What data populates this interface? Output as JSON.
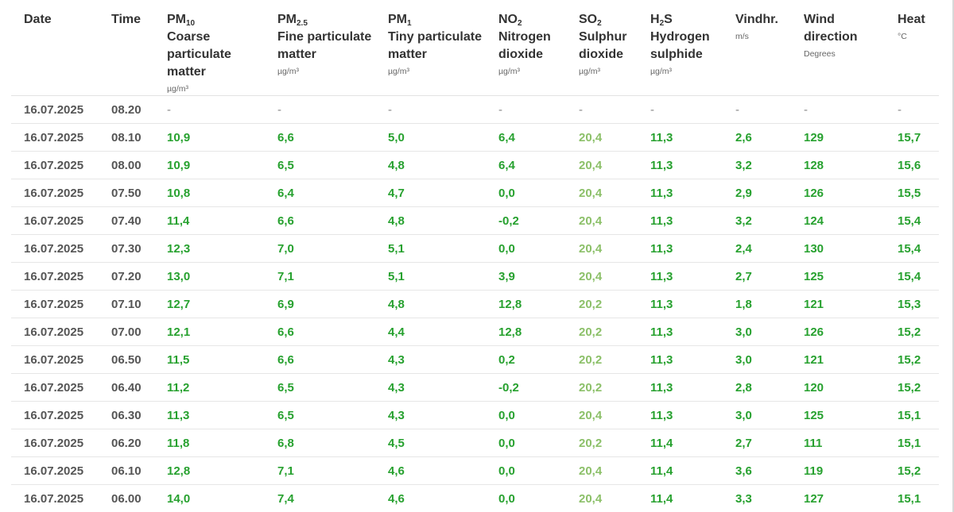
{
  "colors": {
    "green": "#27a12f",
    "light_green": "#8cc069",
    "text": "#333333",
    "dash": "#888888"
  },
  "headers": {
    "date": "Date",
    "time": "Time",
    "pm10": {
      "symbol": "PM",
      "sub": "10",
      "desc": "Coarse particulate matter",
      "unit": "µg/m³"
    },
    "pm25": {
      "symbol": "PM",
      "sub": "2.5",
      "desc": "Fine particulate matter",
      "unit": "µg/m³"
    },
    "pm1": {
      "symbol": "PM",
      "sub": "1",
      "desc": "Tiny particulate matter",
      "unit": "µg/m³"
    },
    "no2": {
      "symbol": "NO",
      "sub": "2",
      "desc": "Nitrogen dioxide",
      "unit": "µg/m³"
    },
    "so2": {
      "symbol": "SO",
      "sub": "2",
      "desc": "Sulphur dioxide",
      "unit": "µg/m³"
    },
    "h2s": {
      "symbol_a": "H",
      "sub": "2",
      "symbol_b": "S",
      "desc": "Hydrogen sulphide",
      "unit": "µg/m³"
    },
    "wind_speed": {
      "label": "Vindhr.",
      "unit": "m/s"
    },
    "wind_dir": {
      "label": "Wind direction",
      "unit": "Degrees"
    },
    "heat": {
      "label": "Heat",
      "unit": "°C"
    }
  },
  "rows": [
    {
      "date": "16.07.2025",
      "time": "08.20",
      "pm10": "-",
      "pm25": "-",
      "pm1": "-",
      "no2": "-",
      "so2": "-",
      "h2s": "-",
      "wind_speed": "-",
      "wind_dir": "-",
      "heat": "-"
    },
    {
      "date": "16.07.2025",
      "time": "08.10",
      "pm10": "10,9",
      "pm25": "6,6",
      "pm1": "5,0",
      "no2": "6,4",
      "so2": "20,4",
      "h2s": "11,3",
      "wind_speed": "2,6",
      "wind_dir": "129",
      "heat": "15,7"
    },
    {
      "date": "16.07.2025",
      "time": "08.00",
      "pm10": "10,9",
      "pm25": "6,5",
      "pm1": "4,8",
      "no2": "6,4",
      "so2": "20,4",
      "h2s": "11,3",
      "wind_speed": "3,2",
      "wind_dir": "128",
      "heat": "15,6"
    },
    {
      "date": "16.07.2025",
      "time": "07.50",
      "pm10": "10,8",
      "pm25": "6,4",
      "pm1": "4,7",
      "no2": "0,0",
      "so2": "20,4",
      "h2s": "11,3",
      "wind_speed": "2,9",
      "wind_dir": "126",
      "heat": "15,5"
    },
    {
      "date": "16.07.2025",
      "time": "07.40",
      "pm10": "11,4",
      "pm25": "6,6",
      "pm1": "4,8",
      "no2": "-0,2",
      "so2": "20,4",
      "h2s": "11,3",
      "wind_speed": "3,2",
      "wind_dir": "124",
      "heat": "15,4"
    },
    {
      "date": "16.07.2025",
      "time": "07.30",
      "pm10": "12,3",
      "pm25": "7,0",
      "pm1": "5,1",
      "no2": "0,0",
      "so2": "20,4",
      "h2s": "11,3",
      "wind_speed": "2,4",
      "wind_dir": "130",
      "heat": "15,4"
    },
    {
      "date": "16.07.2025",
      "time": "07.20",
      "pm10": "13,0",
      "pm25": "7,1",
      "pm1": "5,1",
      "no2": "3,9",
      "so2": "20,4",
      "h2s": "11,3",
      "wind_speed": "2,7",
      "wind_dir": "125",
      "heat": "15,4"
    },
    {
      "date": "16.07.2025",
      "time": "07.10",
      "pm10": "12,7",
      "pm25": "6,9",
      "pm1": "4,8",
      "no2": "12,8",
      "so2": "20,2",
      "h2s": "11,3",
      "wind_speed": "1,8",
      "wind_dir": "121",
      "heat": "15,3"
    },
    {
      "date": "16.07.2025",
      "time": "07.00",
      "pm10": "12,1",
      "pm25": "6,6",
      "pm1": "4,4",
      "no2": "12,8",
      "so2": "20,2",
      "h2s": "11,3",
      "wind_speed": "3,0",
      "wind_dir": "126",
      "heat": "15,2"
    },
    {
      "date": "16.07.2025",
      "time": "06.50",
      "pm10": "11,5",
      "pm25": "6,6",
      "pm1": "4,3",
      "no2": "0,2",
      "so2": "20,2",
      "h2s": "11,3",
      "wind_speed": "3,0",
      "wind_dir": "121",
      "heat": "15,2"
    },
    {
      "date": "16.07.2025",
      "time": "06.40",
      "pm10": "11,2",
      "pm25": "6,5",
      "pm1": "4,3",
      "no2": "-0,2",
      "so2": "20,2",
      "h2s": "11,3",
      "wind_speed": "2,8",
      "wind_dir": "120",
      "heat": "15,2"
    },
    {
      "date": "16.07.2025",
      "time": "06.30",
      "pm10": "11,3",
      "pm25": "6,5",
      "pm1": "4,3",
      "no2": "0,0",
      "so2": "20,4",
      "h2s": "11,3",
      "wind_speed": "3,0",
      "wind_dir": "125",
      "heat": "15,1"
    },
    {
      "date": "16.07.2025",
      "time": "06.20",
      "pm10": "11,8",
      "pm25": "6,8",
      "pm1": "4,5",
      "no2": "0,0",
      "so2": "20,2",
      "h2s": "11,4",
      "wind_speed": "2,7",
      "wind_dir": "111",
      "heat": "15,1"
    },
    {
      "date": "16.07.2025",
      "time": "06.10",
      "pm10": "12,8",
      "pm25": "7,1",
      "pm1": "4,6",
      "no2": "0,0",
      "so2": "20,4",
      "h2s": "11,4",
      "wind_speed": "3,6",
      "wind_dir": "119",
      "heat": "15,2"
    },
    {
      "date": "16.07.2025",
      "time": "06.00",
      "pm10": "14,0",
      "pm25": "7,4",
      "pm1": "4,6",
      "no2": "0,0",
      "so2": "20,4",
      "h2s": "11,4",
      "wind_speed": "3,3",
      "wind_dir": "127",
      "heat": "15,1"
    }
  ]
}
